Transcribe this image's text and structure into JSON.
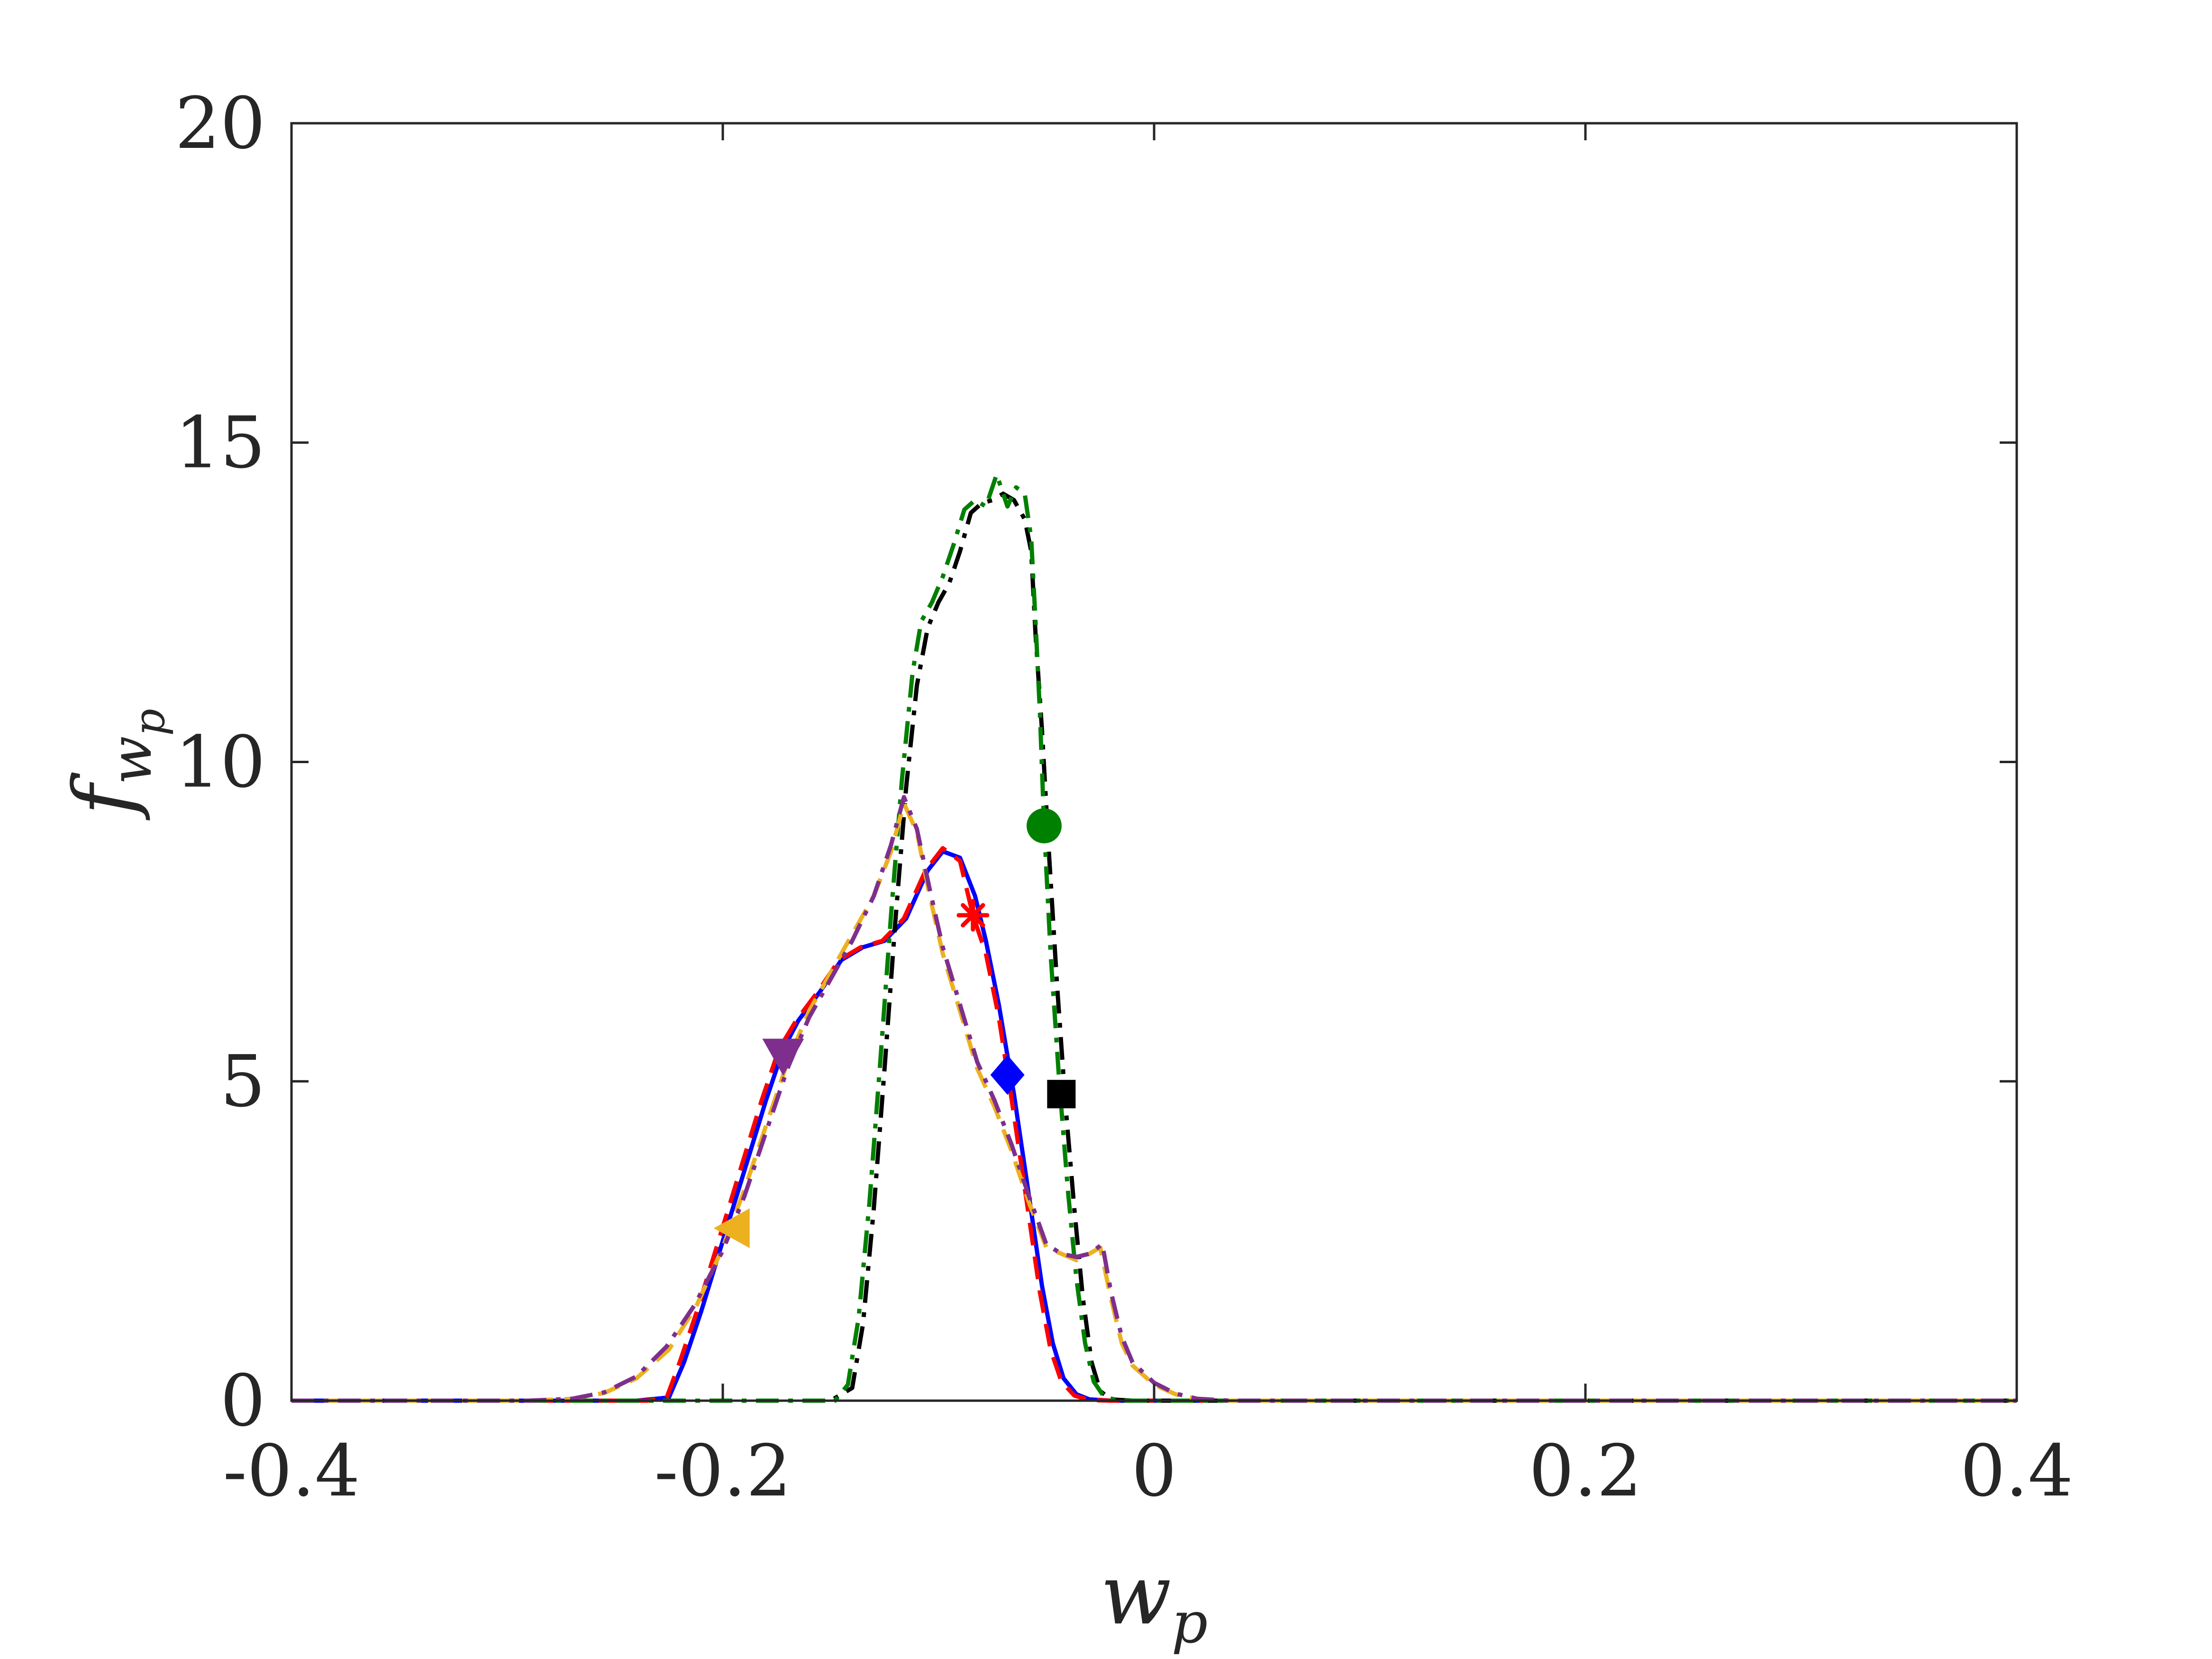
{
  "chart_data": {
    "type": "line",
    "title": "",
    "xlabel": "w",
    "xlabel_sub": "p",
    "ylabel": "f",
    "ylabel_sub": "w",
    "ylabel_subsub": "p",
    "xlim": [
      -0.4,
      0.4
    ],
    "ylim": [
      0,
      20
    ],
    "xticks": [
      -0.4,
      -0.2,
      0,
      0.2,
      0.4
    ],
    "xtick_labels": [
      "-0.4",
      "-0.2",
      "0",
      "0.2",
      "0.4"
    ],
    "yticks": [
      0,
      5,
      10,
      15,
      20
    ],
    "ytick_labels": [
      "0",
      "5",
      "10",
      "15",
      "20"
    ],
    "grid": false,
    "legend": "none",
    "series": [
      {
        "color": "#0000ff",
        "dash": "solid",
        "marker": "diamond",
        "marker_at": [
          -0.068,
          5.1
        ],
        "points": [
          [
            -0.4,
            0
          ],
          [
            -0.24,
            0
          ],
          [
            -0.225,
            0.05
          ],
          [
            -0.218,
            0.6
          ],
          [
            -0.21,
            1.4
          ],
          [
            -0.2,
            2.5
          ],
          [
            -0.19,
            3.6
          ],
          [
            -0.18,
            4.7
          ],
          [
            -0.172,
            5.5
          ],
          [
            -0.165,
            5.95
          ],
          [
            -0.155,
            6.4
          ],
          [
            -0.145,
            6.9
          ],
          [
            -0.135,
            7.1
          ],
          [
            -0.125,
            7.2
          ],
          [
            -0.115,
            7.55
          ],
          [
            -0.105,
            8.3
          ],
          [
            -0.098,
            8.6
          ],
          [
            -0.09,
            8.5
          ],
          [
            -0.083,
            7.9
          ],
          [
            -0.078,
            7.2
          ],
          [
            -0.072,
            6.2
          ],
          [
            -0.065,
            4.8
          ],
          [
            -0.058,
            3.2
          ],
          [
            -0.052,
            1.8
          ],
          [
            -0.047,
            0.9
          ],
          [
            -0.042,
            0.35
          ],
          [
            -0.036,
            0.1
          ],
          [
            -0.03,
            0.02
          ],
          [
            -0.02,
            0
          ],
          [
            0.4,
            0
          ]
        ]
      },
      {
        "color": "#ff0000",
        "dash": "dashed",
        "marker": "asterisk",
        "marker_at": [
          -0.084,
          7.6
        ],
        "points": [
          [
            -0.4,
            0
          ],
          [
            -0.235,
            0
          ],
          [
            -0.226,
            0.05
          ],
          [
            -0.22,
            0.6
          ],
          [
            -0.212,
            1.4
          ],
          [
            -0.202,
            2.5
          ],
          [
            -0.192,
            3.6
          ],
          [
            -0.182,
            4.7
          ],
          [
            -0.174,
            5.5
          ],
          [
            -0.166,
            5.95
          ],
          [
            -0.156,
            6.4
          ],
          [
            -0.146,
            6.9
          ],
          [
            -0.136,
            7.1
          ],
          [
            -0.126,
            7.2
          ],
          [
            -0.116,
            7.55
          ],
          [
            -0.106,
            8.3
          ],
          [
            -0.098,
            8.65
          ],
          [
            -0.09,
            8.45
          ],
          [
            -0.084,
            7.6
          ],
          [
            -0.078,
            7.0
          ],
          [
            -0.072,
            6.0
          ],
          [
            -0.066,
            4.7
          ],
          [
            -0.059,
            3.1
          ],
          [
            -0.053,
            1.7
          ],
          [
            -0.048,
            0.8
          ],
          [
            -0.043,
            0.3
          ],
          [
            -0.037,
            0.08
          ],
          [
            -0.03,
            0.01
          ],
          [
            -0.02,
            0
          ],
          [
            0.4,
            0
          ]
        ]
      },
      {
        "color": "#000000",
        "dash": "dashdot",
        "marker": "square",
        "marker_at": [
          -0.043,
          4.8
        ],
        "points": [
          [
            -0.4,
            0
          ],
          [
            -0.15,
            0
          ],
          [
            -0.14,
            0.2
          ],
          [
            -0.135,
            1.2
          ],
          [
            -0.13,
            3.0
          ],
          [
            -0.125,
            5.2
          ],
          [
            -0.12,
            7.5
          ],
          [
            -0.115,
            9.6
          ],
          [
            -0.11,
            11.2
          ],
          [
            -0.105,
            12.1
          ],
          [
            -0.1,
            12.5
          ],
          [
            -0.095,
            12.8
          ],
          [
            -0.09,
            13.3
          ],
          [
            -0.085,
            13.9
          ],
          [
            -0.08,
            14.05
          ],
          [
            -0.075,
            14.1
          ],
          [
            -0.07,
            14.2
          ],
          [
            -0.065,
            14.1
          ],
          [
            -0.06,
            13.8
          ],
          [
            -0.057,
            13.3
          ],
          [
            -0.055,
            12.0
          ],
          [
            -0.052,
            10.5
          ],
          [
            -0.049,
            8.7
          ],
          [
            -0.045,
            6.5
          ],
          [
            -0.041,
            4.6
          ],
          [
            -0.037,
            3.0
          ],
          [
            -0.033,
            1.6
          ],
          [
            -0.029,
            0.6
          ],
          [
            -0.025,
            0.15
          ],
          [
            -0.02,
            0.02
          ],
          [
            -0.01,
            0
          ],
          [
            0.4,
            0
          ]
        ]
      },
      {
        "color": "#008000",
        "dash": "dashdot",
        "marker": "circle",
        "marker_at": [
          -0.051,
          9.0
        ],
        "points": [
          [
            -0.4,
            0
          ],
          [
            -0.148,
            0
          ],
          [
            -0.142,
            0.25
          ],
          [
            -0.137,
            1.3
          ],
          [
            -0.132,
            3.1
          ],
          [
            -0.127,
            5.3
          ],
          [
            -0.122,
            7.6
          ],
          [
            -0.117,
            9.7
          ],
          [
            -0.112,
            11.4
          ],
          [
            -0.108,
            12.2
          ],
          [
            -0.103,
            12.5
          ],
          [
            -0.098,
            12.9
          ],
          [
            -0.093,
            13.4
          ],
          [
            -0.088,
            13.95
          ],
          [
            -0.083,
            14.1
          ],
          [
            -0.078,
            14.0
          ],
          [
            -0.073,
            14.5
          ],
          [
            -0.068,
            14.0
          ],
          [
            -0.064,
            14.3
          ],
          [
            -0.06,
            14.2
          ],
          [
            -0.057,
            13.5
          ],
          [
            -0.055,
            12.2
          ],
          [
            -0.053,
            10.8
          ],
          [
            -0.051,
            9.0
          ],
          [
            -0.048,
            7.0
          ],
          [
            -0.044,
            5.0
          ],
          [
            -0.04,
            3.3
          ],
          [
            -0.036,
            1.9
          ],
          [
            -0.032,
            0.9
          ],
          [
            -0.028,
            0.3
          ],
          [
            -0.023,
            0.05
          ],
          [
            -0.015,
            0
          ],
          [
            0.4,
            0
          ]
        ]
      },
      {
        "color": "#edb120",
        "dash": "dashed",
        "marker": "triangle-left",
        "marker_at": [
          -0.195,
          2.7
        ],
        "points": [
          [
            -0.4,
            0
          ],
          [
            -0.29,
            0
          ],
          [
            -0.27,
            0.03
          ],
          [
            -0.255,
            0.12
          ],
          [
            -0.24,
            0.35
          ],
          [
            -0.225,
            0.8
          ],
          [
            -0.212,
            1.5
          ],
          [
            -0.2,
            2.4
          ],
          [
            -0.19,
            3.3
          ],
          [
            -0.18,
            4.3
          ],
          [
            -0.17,
            5.3
          ],
          [
            -0.16,
            6.1
          ],
          [
            -0.15,
            6.7
          ],
          [
            -0.14,
            7.3
          ],
          [
            -0.13,
            7.9
          ],
          [
            -0.122,
            8.6
          ],
          [
            -0.116,
            9.35
          ],
          [
            -0.11,
            8.9
          ],
          [
            -0.104,
            7.9
          ],
          [
            -0.098,
            7.0
          ],
          [
            -0.09,
            6.1
          ],
          [
            -0.082,
            5.2
          ],
          [
            -0.074,
            4.6
          ],
          [
            -0.066,
            3.9
          ],
          [
            -0.058,
            3.1
          ],
          [
            -0.05,
            2.4
          ],
          [
            -0.043,
            2.3
          ],
          [
            -0.036,
            2.2
          ],
          [
            -0.03,
            2.3
          ],
          [
            -0.025,
            2.4
          ],
          [
            -0.02,
            1.6
          ],
          [
            -0.015,
            0.9
          ],
          [
            -0.01,
            0.55
          ],
          [
            0,
            0.25
          ],
          [
            0.01,
            0.1
          ],
          [
            0.02,
            0.03
          ],
          [
            0.035,
            0
          ],
          [
            0.4,
            0
          ]
        ]
      },
      {
        "color": "#7e2f8e",
        "dash": "dashdot",
        "marker": "triangle-down",
        "marker_at": [
          -0.172,
          5.4
        ],
        "points": [
          [
            -0.4,
            0
          ],
          [
            -0.29,
            0
          ],
          [
            -0.27,
            0.03
          ],
          [
            -0.255,
            0.13
          ],
          [
            -0.24,
            0.38
          ],
          [
            -0.226,
            0.85
          ],
          [
            -0.213,
            1.5
          ],
          [
            -0.2,
            2.35
          ],
          [
            -0.19,
            3.2
          ],
          [
            -0.18,
            4.2
          ],
          [
            -0.17,
            5.2
          ],
          [
            -0.16,
            6.0
          ],
          [
            -0.15,
            6.6
          ],
          [
            -0.14,
            7.2
          ],
          [
            -0.13,
            7.9
          ],
          [
            -0.122,
            8.7
          ],
          [
            -0.116,
            9.45
          ],
          [
            -0.11,
            8.95
          ],
          [
            -0.104,
            8.0
          ],
          [
            -0.098,
            7.1
          ],
          [
            -0.09,
            6.2
          ],
          [
            -0.082,
            5.3
          ],
          [
            -0.074,
            4.7
          ],
          [
            -0.066,
            4.0
          ],
          [
            -0.058,
            3.2
          ],
          [
            -0.05,
            2.45
          ],
          [
            -0.043,
            2.3
          ],
          [
            -0.036,
            2.25
          ],
          [
            -0.03,
            2.3
          ],
          [
            -0.024,
            2.45
          ],
          [
            -0.02,
            1.7
          ],
          [
            -0.015,
            1.0
          ],
          [
            -0.01,
            0.6
          ],
          [
            0,
            0.28
          ],
          [
            0.01,
            0.11
          ],
          [
            0.02,
            0.03
          ],
          [
            0.035,
            0
          ],
          [
            0.4,
            0
          ]
        ]
      }
    ]
  }
}
